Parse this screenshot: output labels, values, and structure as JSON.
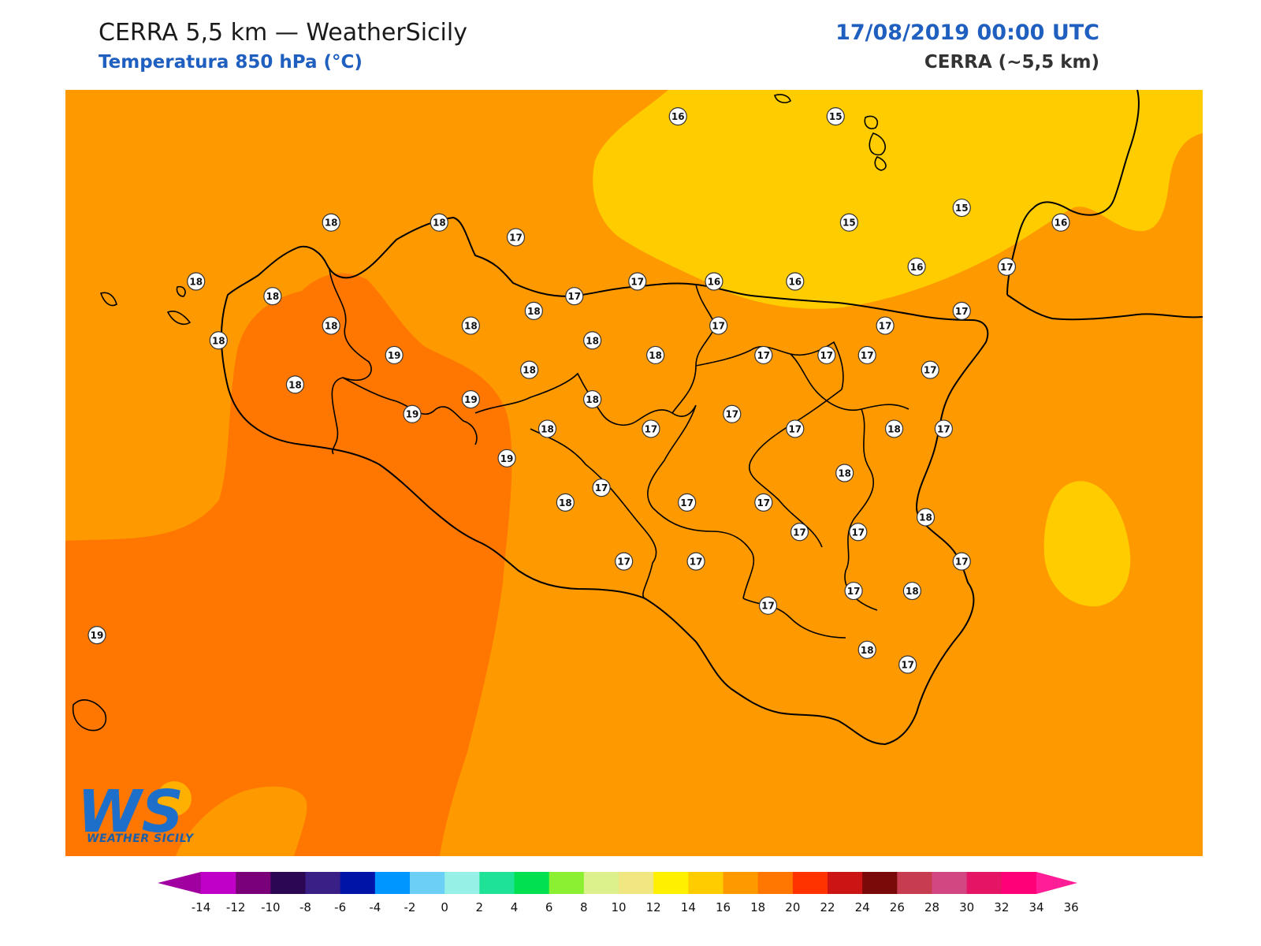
{
  "header": {
    "title": "CERRA 5,5 km — WeatherSicily",
    "subtitle": "Temperatura 850 hPa (°C)",
    "datetime": "17/08/2019 00:00 UTC",
    "model": "CERRA (~5,5 km)"
  },
  "logo": {
    "initials": "WS",
    "name": "WEATHER SICILY"
  },
  "colors": {
    "t14_16": "#ffcc00",
    "t16_18": "#ff9900",
    "t18_20": "#ff7700",
    "coast": "#000000"
  },
  "labels": [
    {
      "v": "16",
      "lon": 14.52,
      "lat": 38.96
    },
    {
      "v": "15",
      "lon": 15.22,
      "lat": 38.96
    },
    {
      "v": "15",
      "lon": 15.78,
      "lat": 38.65
    },
    {
      "v": "16",
      "lon": 16.22,
      "lat": 38.6
    },
    {
      "v": "18",
      "lon": 12.98,
      "lat": 38.6
    },
    {
      "v": "18",
      "lon": 13.46,
      "lat": 38.6
    },
    {
      "v": "17",
      "lon": 13.8,
      "lat": 38.55
    },
    {
      "v": "15",
      "lon": 15.28,
      "lat": 38.6
    },
    {
      "v": "18",
      "lon": 12.38,
      "lat": 38.4
    },
    {
      "v": "18",
      "lon": 12.72,
      "lat": 38.35
    },
    {
      "v": "17",
      "lon": 14.06,
      "lat": 38.35
    },
    {
      "v": "17",
      "lon": 14.34,
      "lat": 38.4
    },
    {
      "v": "16",
      "lon": 14.68,
      "lat": 38.4
    },
    {
      "v": "16",
      "lon": 15.04,
      "lat": 38.4
    },
    {
      "v": "16",
      "lon": 15.58,
      "lat": 38.45
    },
    {
      "v": "17",
      "lon": 15.98,
      "lat": 38.45
    },
    {
      "v": "18",
      "lon": 12.98,
      "lat": 38.25
    },
    {
      "v": "18",
      "lon": 13.6,
      "lat": 38.25
    },
    {
      "v": "18",
      "lon": 13.88,
      "lat": 38.3
    },
    {
      "v": "17",
      "lon": 14.7,
      "lat": 38.25
    },
    {
      "v": "17",
      "lon": 15.44,
      "lat": 38.25
    },
    {
      "v": "17",
      "lon": 15.78,
      "lat": 38.3
    },
    {
      "v": "18",
      "lon": 12.48,
      "lat": 38.2
    },
    {
      "v": "19",
      "lon": 13.26,
      "lat": 38.15
    },
    {
      "v": "18",
      "lon": 14.14,
      "lat": 38.2
    },
    {
      "v": "18",
      "lon": 14.42,
      "lat": 38.15
    },
    {
      "v": "17",
      "lon": 14.9,
      "lat": 38.15
    },
    {
      "v": "17",
      "lon": 15.18,
      "lat": 38.15
    },
    {
      "v": "17",
      "lon": 15.36,
      "lat": 38.15
    },
    {
      "v": "18",
      "lon": 12.82,
      "lat": 38.05
    },
    {
      "v": "18",
      "lon": 13.86,
      "lat": 38.1
    },
    {
      "v": "17",
      "lon": 15.64,
      "lat": 38.1
    },
    {
      "v": "19",
      "lon": 13.6,
      "lat": 38.0
    },
    {
      "v": "18",
      "lon": 14.14,
      "lat": 38.0
    },
    {
      "v": "19",
      "lon": 13.34,
      "lat": 37.95
    },
    {
      "v": "18",
      "lon": 13.94,
      "lat": 37.9
    },
    {
      "v": "17",
      "lon": 14.4,
      "lat": 37.9
    },
    {
      "v": "17",
      "lon": 14.76,
      "lat": 37.95
    },
    {
      "v": "17",
      "lon": 15.04,
      "lat": 37.9
    },
    {
      "v": "18",
      "lon": 15.48,
      "lat": 37.9
    },
    {
      "v": "17",
      "lon": 15.7,
      "lat": 37.9
    },
    {
      "v": "19",
      "lon": 13.76,
      "lat": 37.8
    },
    {
      "v": "17",
      "lon": 14.18,
      "lat": 37.7
    },
    {
      "v": "18",
      "lon": 15.26,
      "lat": 37.75
    },
    {
      "v": "18",
      "lon": 14.02,
      "lat": 37.65
    },
    {
      "v": "17",
      "lon": 14.56,
      "lat": 37.65
    },
    {
      "v": "17",
      "lon": 14.9,
      "lat": 37.65
    },
    {
      "v": "17",
      "lon": 15.06,
      "lat": 37.55
    },
    {
      "v": "17",
      "lon": 15.32,
      "lat": 37.55
    },
    {
      "v": "18",
      "lon": 15.62,
      "lat": 37.6
    },
    {
      "v": "17",
      "lon": 14.28,
      "lat": 37.45
    },
    {
      "v": "17",
      "lon": 14.6,
      "lat": 37.45
    },
    {
      "v": "17",
      "lon": 15.78,
      "lat": 37.45
    },
    {
      "v": "17",
      "lon": 14.92,
      "lat": 37.3
    },
    {
      "v": "17",
      "lon": 15.3,
      "lat": 37.35
    },
    {
      "v": "18",
      "lon": 15.56,
      "lat": 37.35
    },
    {
      "v": "19",
      "lon": 11.94,
      "lat": 37.2
    },
    {
      "v": "18",
      "lon": 15.36,
      "lat": 37.15
    },
    {
      "v": "17",
      "lon": 15.54,
      "lat": 37.1
    }
  ],
  "colorbar": {
    "ticks": [
      "-14",
      "-12",
      "-10",
      "-8",
      "-6",
      "-4",
      "-2",
      "0",
      "2",
      "4",
      "6",
      "8",
      "10",
      "12",
      "14",
      "16",
      "18",
      "20",
      "22",
      "24",
      "26",
      "28",
      "30",
      "32",
      "34",
      "36"
    ],
    "colors": [
      "#c000c8",
      "#7a007a",
      "#2c0852",
      "#3a1f87",
      "#0014a8",
      "#0096ff",
      "#6ccff6",
      "#96f0e6",
      "#1ee396",
      "#00e050",
      "#8cf032",
      "#dcf08c",
      "#f0e682",
      "#fff000",
      "#ffcc00",
      "#ff9900",
      "#ff7700",
      "#ff3300",
      "#cc1414",
      "#7a0a0a",
      "#c83c50",
      "#d24682",
      "#e61464",
      "#ff0078"
    ],
    "low_color": "#a000a0",
    "high_color": "#ff1e96"
  }
}
